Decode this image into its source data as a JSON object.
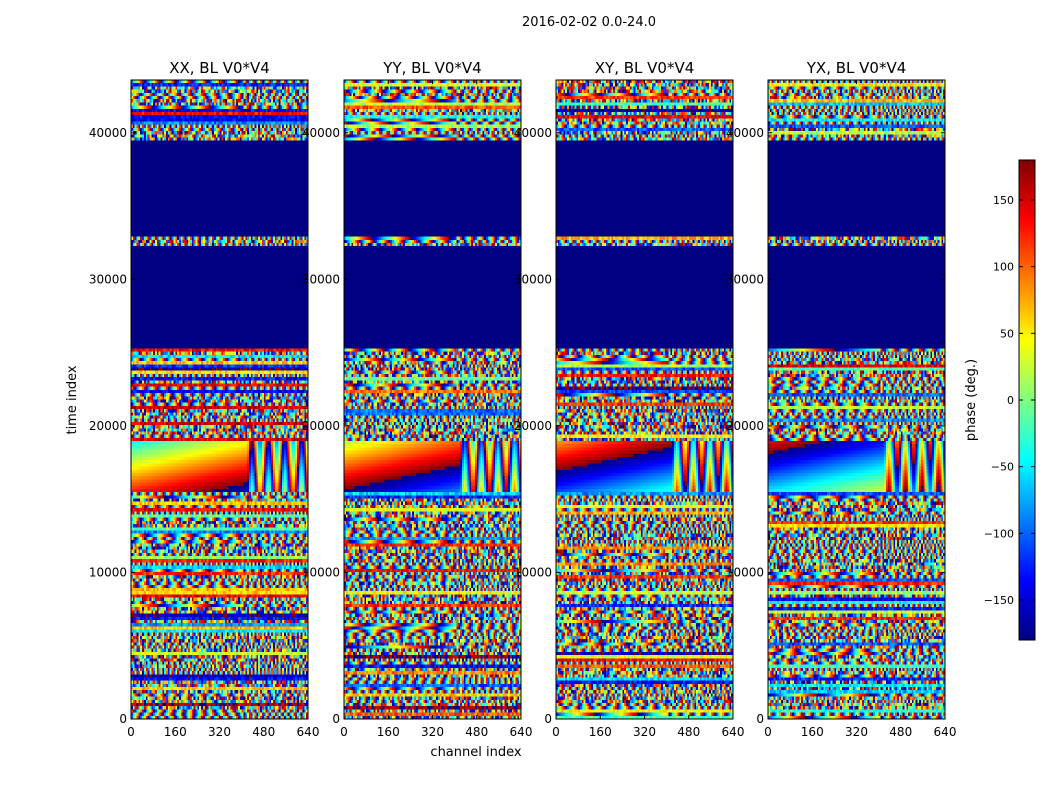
{
  "figure": {
    "suptitle": "2016-02-02 0.0-24.0",
    "xlabel": "channel index",
    "ylabel": "time index",
    "colorbar_label": "phase (deg.)"
  },
  "colors": {
    "background": "#ffffff",
    "masked": "#000080",
    "axis": "#000000"
  },
  "chart_data": {
    "type": "heatmap",
    "colormap": "jet",
    "xlim": [
      0,
      640
    ],
    "ylim": [
      0,
      43600
    ],
    "xticks": [
      0,
      160,
      320,
      480,
      640
    ],
    "yticks": [
      0,
      10000,
      20000,
      30000,
      40000
    ],
    "value_range": [
      -180,
      180
    ],
    "colorbar_ticks": [
      150,
      100,
      50,
      0,
      -50,
      -100,
      -150
    ],
    "colorbar_tick_labels": [
      "150",
      "100",
      "50",
      "0",
      "−50",
      "−100",
      "−150"
    ],
    "masked_time_ranges": [
      [
        25200,
        31300
      ],
      [
        31500,
        32200
      ],
      [
        33000,
        39400
      ]
    ],
    "panels": [
      {
        "title": "XX, BL V0*V4",
        "seed": 11
      },
      {
        "title": "YY, BL V0*V4",
        "seed": 23
      },
      {
        "title": "XY, BL V0*V4",
        "seed": 37
      },
      {
        "title": "YX, BL V0*V4",
        "seed": 51
      }
    ]
  }
}
